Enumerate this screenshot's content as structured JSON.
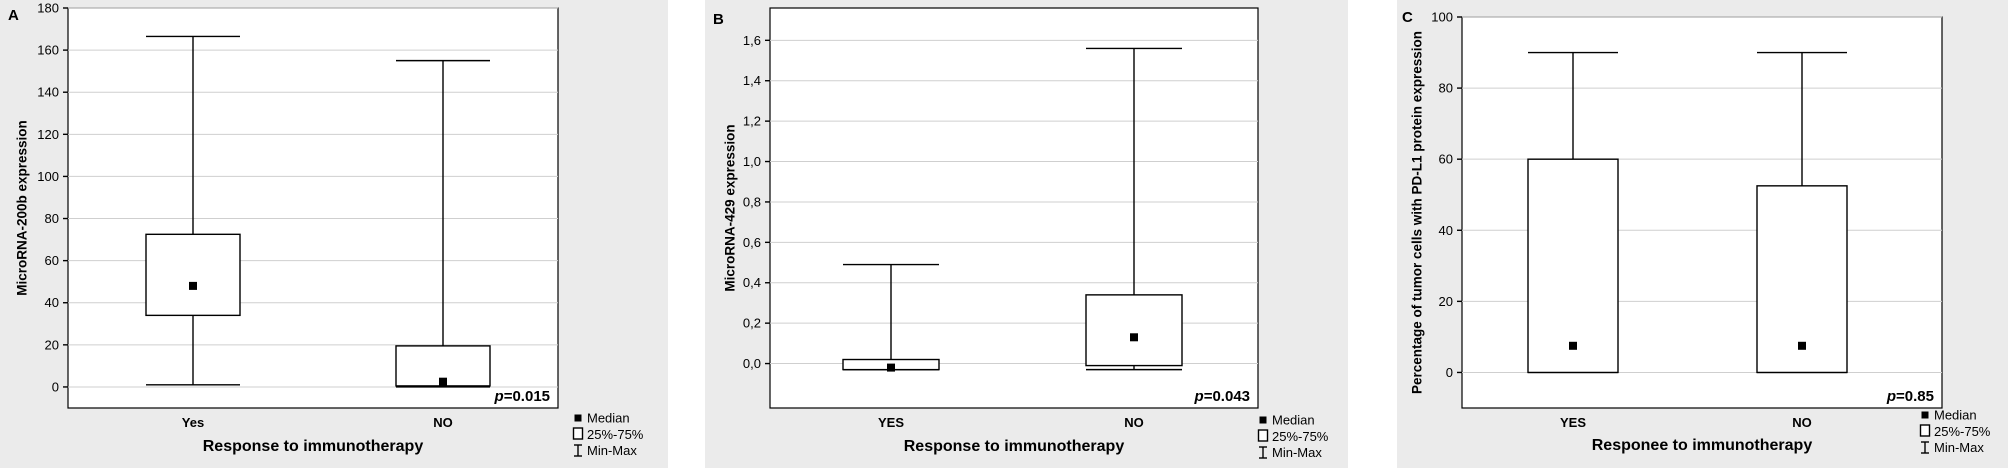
{
  "chart_data": [
    {
      "type": "box",
      "panel": "A",
      "xlabel": "Response to immunotherapy",
      "ylabel": "MicroRNA-200b expression",
      "ylim": [
        -10,
        180
      ],
      "yticks": [
        0,
        20,
        40,
        60,
        80,
        100,
        120,
        140,
        160,
        180
      ],
      "ytick_labels": [
        "0",
        "20",
        "40",
        "60",
        "80",
        "100",
        "120",
        "140",
        "160",
        "180"
      ],
      "grid": true,
      "categories": [
        "Yes",
        "NO"
      ],
      "boxes": [
        {
          "min": 1,
          "q1": 34,
          "median": 48,
          "q3": 72.5,
          "max": 166.5
        },
        {
          "min": 0,
          "q1": 0.5,
          "median": 2.5,
          "q3": 19.5,
          "max": 155
        }
      ],
      "p_value": "=0.015",
      "p_prefix": "p",
      "legend": {
        "median": "Median",
        "box": "25%-75%",
        "range": "Min-Max"
      }
    },
    {
      "type": "box",
      "panel": "B",
      "xlabel": "Response to immunotherapy",
      "ylabel": "MicroRNA-429 expression",
      "ylim": [
        -0.22,
        1.76
      ],
      "yticks": [
        0,
        0.2,
        0.4,
        0.6,
        0.8,
        1.0,
        1.2,
        1.4,
        1.6
      ],
      "ytick_labels": [
        "0,0",
        "0,2",
        "0,4",
        "0,6",
        "0,8",
        "1,0",
        "1,2",
        "1,4",
        "1,6"
      ],
      "grid": true,
      "categories": [
        "YES",
        "NO"
      ],
      "boxes": [
        {
          "min": -0.03,
          "q1": -0.03,
          "median": -0.02,
          "q3": 0.02,
          "max": 0.49
        },
        {
          "min": -0.03,
          "q1": -0.01,
          "median": 0.13,
          "q3": 0.34,
          "max": 1.56
        }
      ],
      "p_value": "=0.043",
      "p_prefix": "p",
      "legend": {
        "median": "Median",
        "box": "25%-75%",
        "range": "Min-Max"
      }
    },
    {
      "type": "box",
      "panel": "C",
      "xlabel": "Responee to immunotherapy",
      "ylabel": "Percentage of tumor cells with PD-L1 protein expression",
      "ylim": [
        -10,
        100
      ],
      "yticks": [
        0,
        20,
        40,
        60,
        80,
        100
      ],
      "ytick_labels": [
        "0",
        "20",
        "40",
        "60",
        "80",
        "100"
      ],
      "grid": true,
      "categories": [
        "YES",
        "NO"
      ],
      "boxes": [
        {
          "min": 0,
          "q1": 0,
          "median": 7.5,
          "q3": 60,
          "max": 90
        },
        {
          "min": 0,
          "q1": 0,
          "median": 7.5,
          "q3": 52.5,
          "max": 90
        }
      ],
      "p_value": "=0.85",
      "p_prefix": "p",
      "legend": {
        "median": "Median",
        "box": "25%-75%",
        "range": "Min-Max"
      }
    }
  ]
}
